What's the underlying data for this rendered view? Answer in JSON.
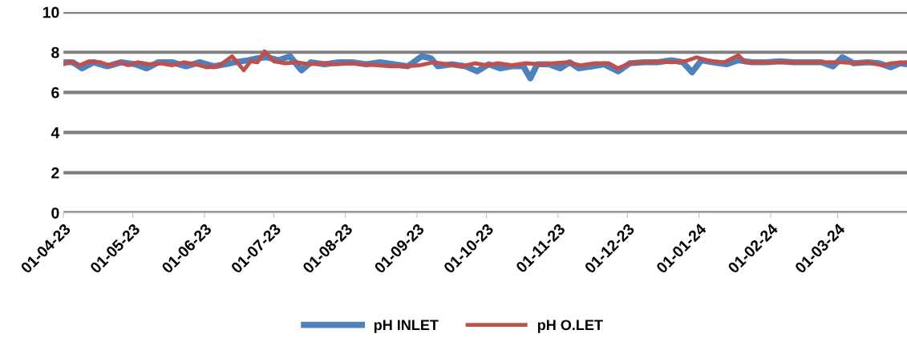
{
  "chart_data": {
    "type": "line",
    "ylim": [
      0,
      10
    ],
    "yticks": [
      0,
      2,
      4,
      6,
      8,
      10
    ],
    "xlim": [
      "2023-04-01",
      "2024-03-31"
    ],
    "xticks": [
      {
        "value": "2023-04-01",
        "label": "01-04-23"
      },
      {
        "value": "2023-05-01",
        "label": "01-05-23"
      },
      {
        "value": "2023-06-01",
        "label": "01-06-23"
      },
      {
        "value": "2023-07-01",
        "label": "01-07-23"
      },
      {
        "value": "2023-08-01",
        "label": "01-08-23"
      },
      {
        "value": "2023-09-01",
        "label": "01-09-23"
      },
      {
        "value": "2023-10-01",
        "label": "01-10-23"
      },
      {
        "value": "2023-11-01",
        "label": "01-11-23"
      },
      {
        "value": "2023-12-01",
        "label": "01-12-23"
      },
      {
        "value": "2024-01-01",
        "label": "01-01-24"
      },
      {
        "value": "2024-02-01",
        "label": "01-02-24"
      },
      {
        "value": "2024-03-01",
        "label": "01-03-24"
      }
    ],
    "grid": "y",
    "legend": "bottom",
    "marker": "none",
    "line_style": "solid",
    "series": [
      {
        "name": "pH INLET",
        "color": "#4f81bd",
        "x": [
          "2023-04-01",
          "2023-04-05",
          "2023-04-09",
          "2023-04-14",
          "2023-04-20",
          "2023-04-26",
          "2023-05-02",
          "2023-05-07",
          "2023-05-12",
          "2023-05-18",
          "2023-05-24",
          "2023-05-30",
          "2023-06-05",
          "2023-06-10",
          "2023-06-14",
          "2023-06-20",
          "2023-06-24",
          "2023-06-28",
          "2023-07-03",
          "2023-07-08",
          "2023-07-13",
          "2023-07-17",
          "2023-07-23",
          "2023-07-29",
          "2023-08-04",
          "2023-08-10",
          "2023-08-16",
          "2023-08-22",
          "2023-08-28",
          "2023-09-03",
          "2023-09-07",
          "2023-09-10",
          "2023-09-16",
          "2023-09-22",
          "2023-09-27",
          "2023-10-02",
          "2023-10-07",
          "2023-10-12",
          "2023-10-17",
          "2023-10-20",
          "2023-10-23",
          "2023-10-28",
          "2023-11-02",
          "2023-11-06",
          "2023-11-10",
          "2023-11-16",
          "2023-11-21",
          "2023-11-27",
          "2023-12-02",
          "2023-12-08",
          "2023-12-14",
          "2023-12-20",
          "2023-12-25",
          "2023-12-29",
          "2024-01-02",
          "2024-01-07",
          "2024-01-13",
          "2024-01-18",
          "2024-01-24",
          "2024-01-30",
          "2024-02-05",
          "2024-02-11",
          "2024-02-17",
          "2024-02-23",
          "2024-02-28",
          "2024-03-03",
          "2024-03-08",
          "2024-03-14",
          "2024-03-19",
          "2024-03-24",
          "2024-03-28",
          "2024-03-31"
        ],
        "values": [
          7.5,
          7.5,
          7.2,
          7.5,
          7.3,
          7.5,
          7.4,
          7.2,
          7.5,
          7.5,
          7.3,
          7.5,
          7.3,
          7.4,
          7.5,
          7.6,
          7.7,
          7.75,
          7.6,
          7.8,
          7.1,
          7.5,
          7.4,
          7.5,
          7.5,
          7.4,
          7.5,
          7.4,
          7.3,
          7.8,
          7.7,
          7.3,
          7.4,
          7.3,
          7.05,
          7.4,
          7.2,
          7.3,
          7.3,
          6.7,
          7.4,
          7.4,
          7.2,
          7.5,
          7.2,
          7.3,
          7.4,
          7.05,
          7.45,
          7.5,
          7.5,
          7.6,
          7.5,
          7.0,
          7.6,
          7.5,
          7.4,
          7.6,
          7.5,
          7.5,
          7.55,
          7.5,
          7.5,
          7.5,
          7.3,
          7.75,
          7.45,
          7.5,
          7.45,
          7.25,
          7.45,
          7.4
        ]
      },
      {
        "name": "pH O.LET",
        "color": "#c0504d",
        "x": [
          "2023-04-01",
          "2023-04-04",
          "2023-04-08",
          "2023-04-12",
          "2023-04-17",
          "2023-04-21",
          "2023-04-25",
          "2023-04-29",
          "2023-05-03",
          "2023-05-08",
          "2023-05-13",
          "2023-05-18",
          "2023-05-23",
          "2023-05-28",
          "2023-06-02",
          "2023-06-07",
          "2023-06-13",
          "2023-06-18",
          "2023-06-21",
          "2023-06-24",
          "2023-06-27",
          "2023-07-01",
          "2023-07-06",
          "2023-07-11",
          "2023-07-16",
          "2023-07-22",
          "2023-07-28",
          "2023-08-03",
          "2023-08-09",
          "2023-08-15",
          "2023-08-21",
          "2023-08-27",
          "2023-09-02",
          "2023-09-08",
          "2023-09-14",
          "2023-09-20",
          "2023-09-26",
          "2023-10-01",
          "2023-10-06",
          "2023-10-12",
          "2023-10-18",
          "2023-10-24",
          "2023-10-30",
          "2023-11-05",
          "2023-11-11",
          "2023-11-17",
          "2023-11-23",
          "2023-11-27",
          "2023-12-02",
          "2023-12-08",
          "2023-12-14",
          "2023-12-20",
          "2023-12-26",
          "2023-12-31",
          "2024-01-06",
          "2024-01-12",
          "2024-01-18",
          "2024-01-21",
          "2024-01-27",
          "2024-02-02",
          "2024-02-08",
          "2024-02-14",
          "2024-02-20",
          "2024-02-26",
          "2024-03-03",
          "2024-03-09",
          "2024-03-15",
          "2024-03-20",
          "2024-03-24",
          "2024-03-31"
        ],
        "values": [
          7.4,
          7.55,
          7.35,
          7.55,
          7.5,
          7.35,
          7.5,
          7.35,
          7.5,
          7.4,
          7.45,
          7.35,
          7.5,
          7.4,
          7.25,
          7.3,
          7.8,
          7.1,
          7.55,
          7.5,
          8.05,
          7.55,
          7.45,
          7.5,
          7.4,
          7.45,
          7.4,
          7.45,
          7.4,
          7.35,
          7.3,
          7.3,
          7.35,
          7.5,
          7.4,
          7.3,
          7.45,
          7.35,
          7.45,
          7.35,
          7.45,
          7.4,
          7.45,
          7.5,
          7.35,
          7.45,
          7.45,
          7.2,
          7.45,
          7.5,
          7.55,
          7.5,
          7.55,
          7.75,
          7.55,
          7.5,
          7.85,
          7.5,
          7.5,
          7.5,
          7.5,
          7.5,
          7.5,
          7.5,
          7.5,
          7.45,
          7.5,
          7.35,
          7.45,
          7.5
        ]
      }
    ]
  }
}
